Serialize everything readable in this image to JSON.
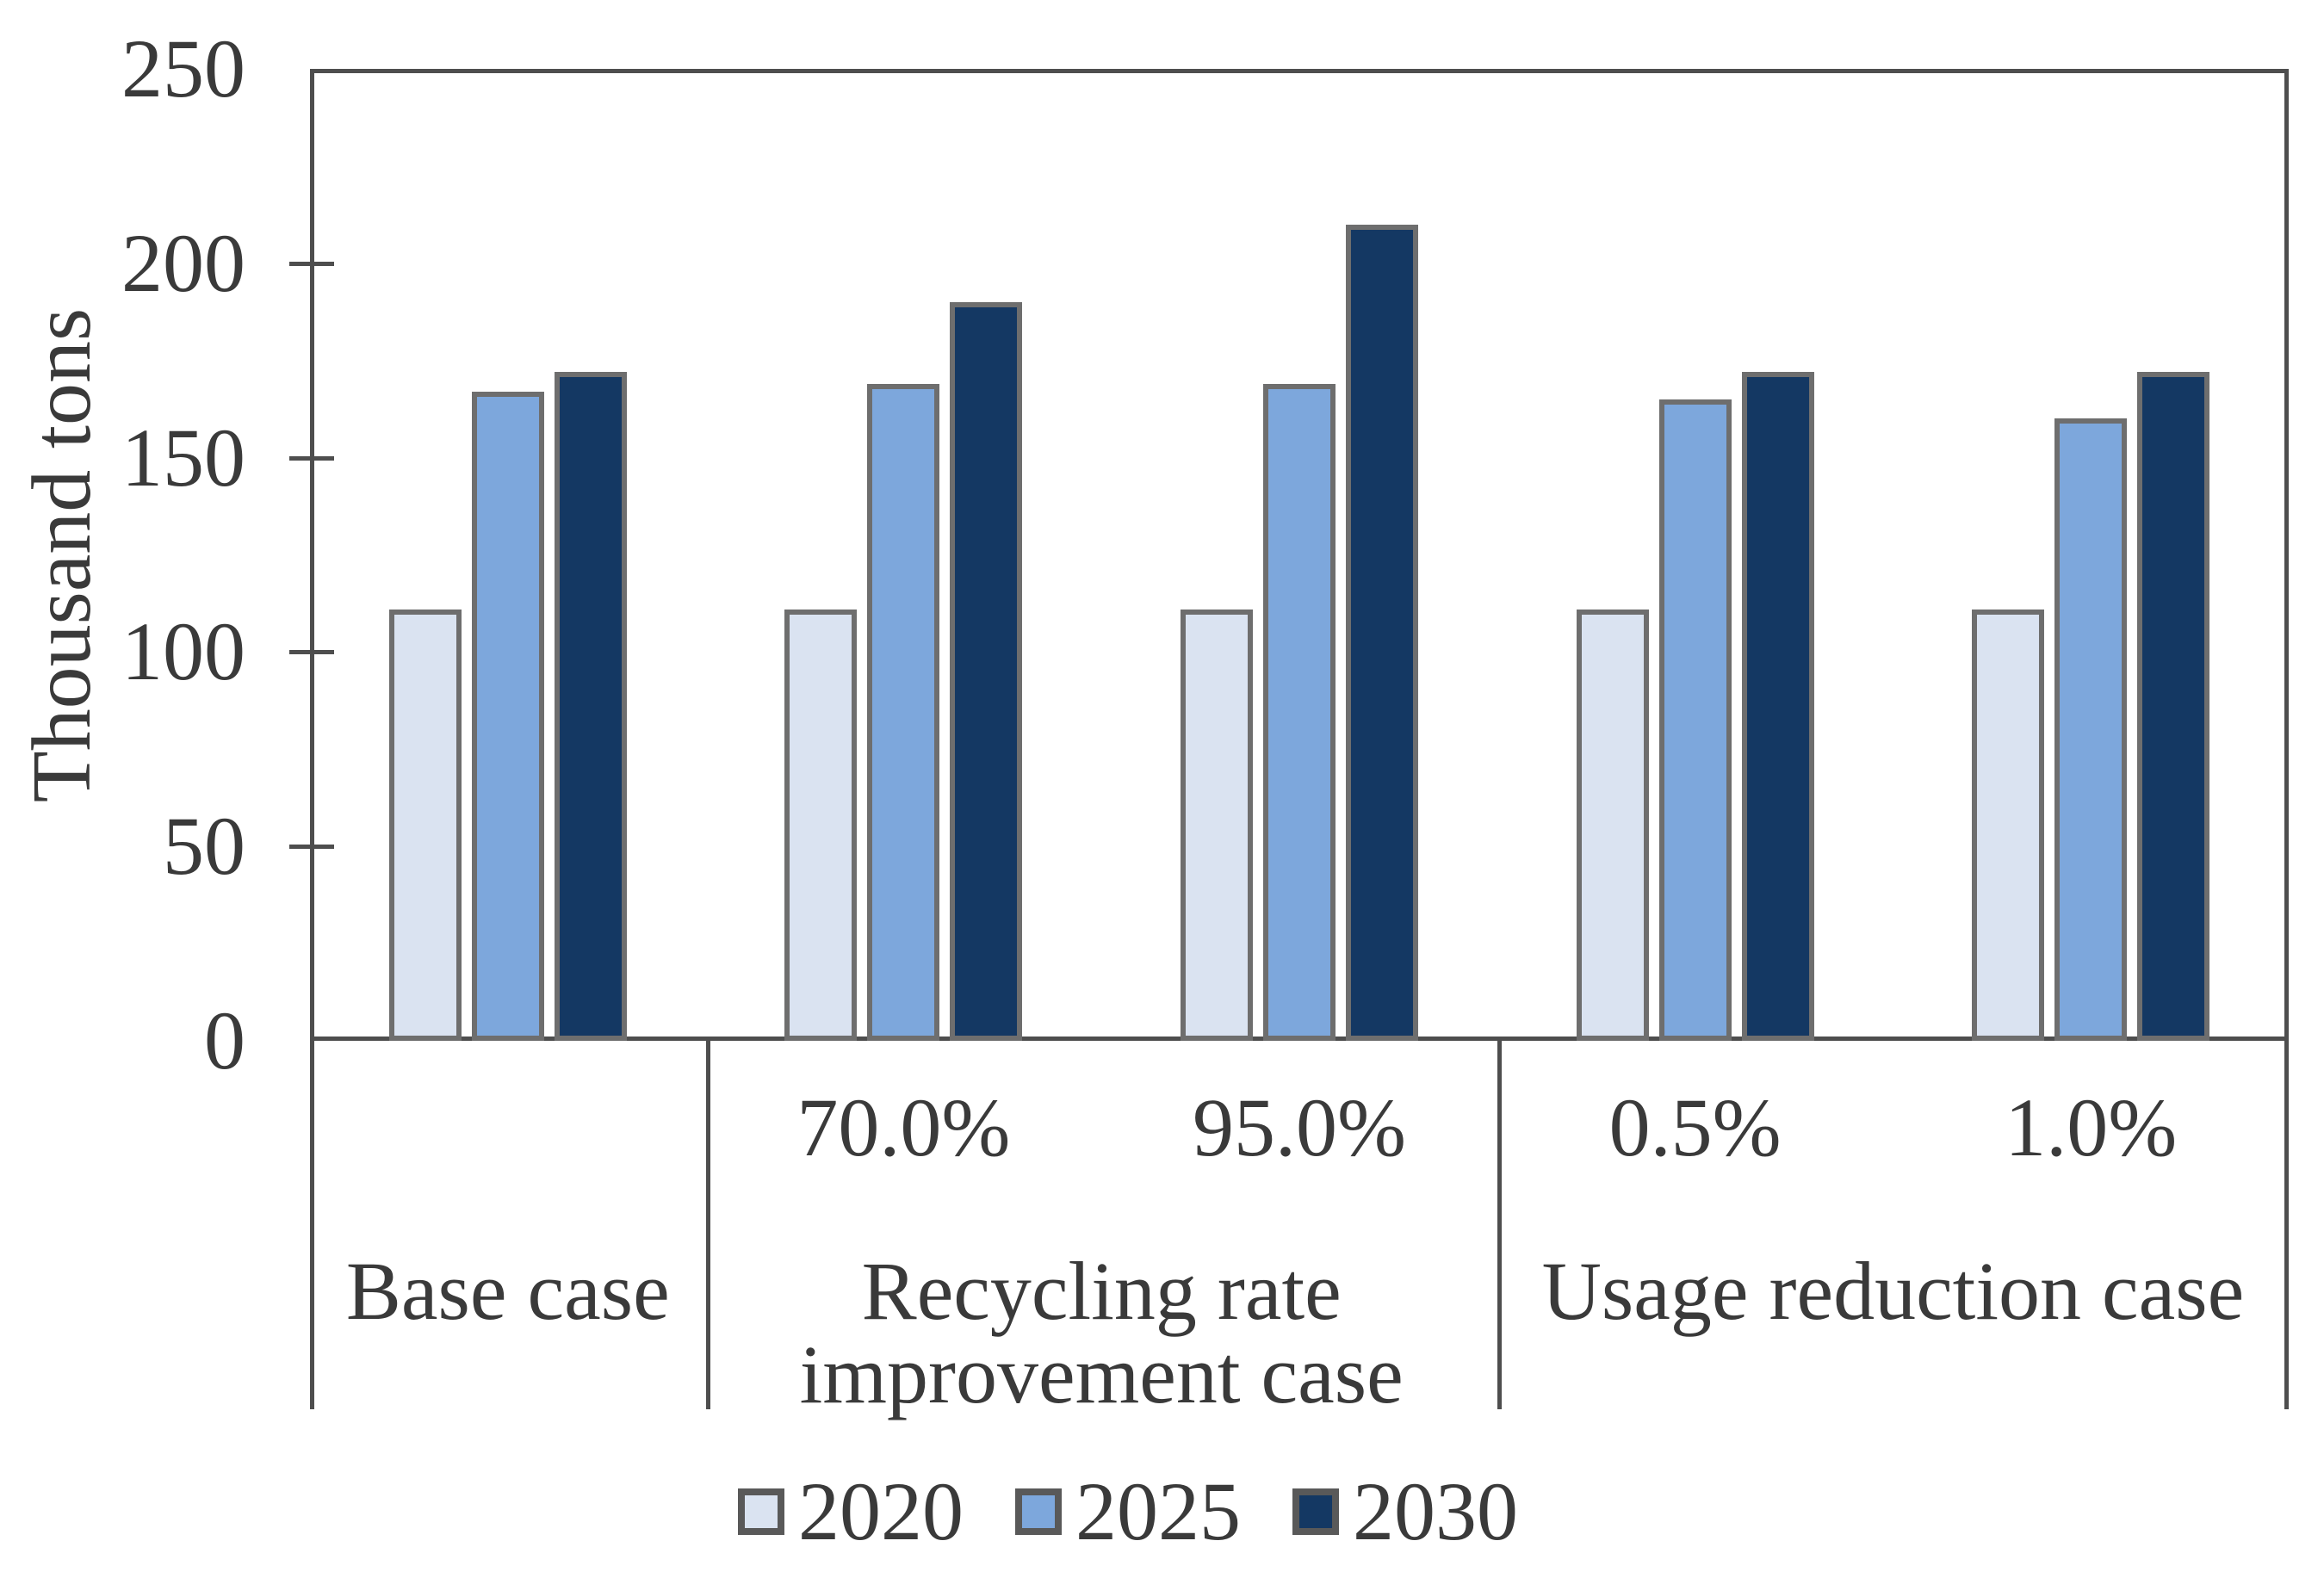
{
  "chart_data": {
    "type": "bar",
    "title": "",
    "ylabel": "Thousand tons",
    "ylim": [
      0,
      250
    ],
    "yticks": [
      0,
      50,
      100,
      150,
      200,
      250
    ],
    "grid": false,
    "legend_position": "bottom",
    "slot_sublabels": [
      "",
      "70.0%",
      "95.0%",
      "0.5%",
      "1.0%"
    ],
    "sections": [
      {
        "label_lines": [
          "Base case"
        ],
        "slots": 1
      },
      {
        "label_lines": [
          "Recycling rate",
          "improvement case"
        ],
        "slots": 2
      },
      {
        "label_lines": [
          "Usage reduction case"
        ],
        "slots": 2
      }
    ],
    "series": [
      {
        "name": "2020",
        "color": "#dae3f1",
        "values": [
          111,
          111,
          111,
          111,
          111
        ]
      },
      {
        "name": "2025",
        "color": "#7da7dc",
        "values": [
          167,
          169,
          169,
          165,
          160
        ]
      },
      {
        "name": "2030",
        "color": "#143863",
        "values": [
          172,
          190,
          210,
          172,
          172
        ]
      }
    ]
  },
  "colors": {
    "axis": "#4e4e4e",
    "bar_border": "#6e6e6e",
    "text": "#3a3a3a",
    "swatch_border": "#595959",
    "background": "#ffffff"
  }
}
